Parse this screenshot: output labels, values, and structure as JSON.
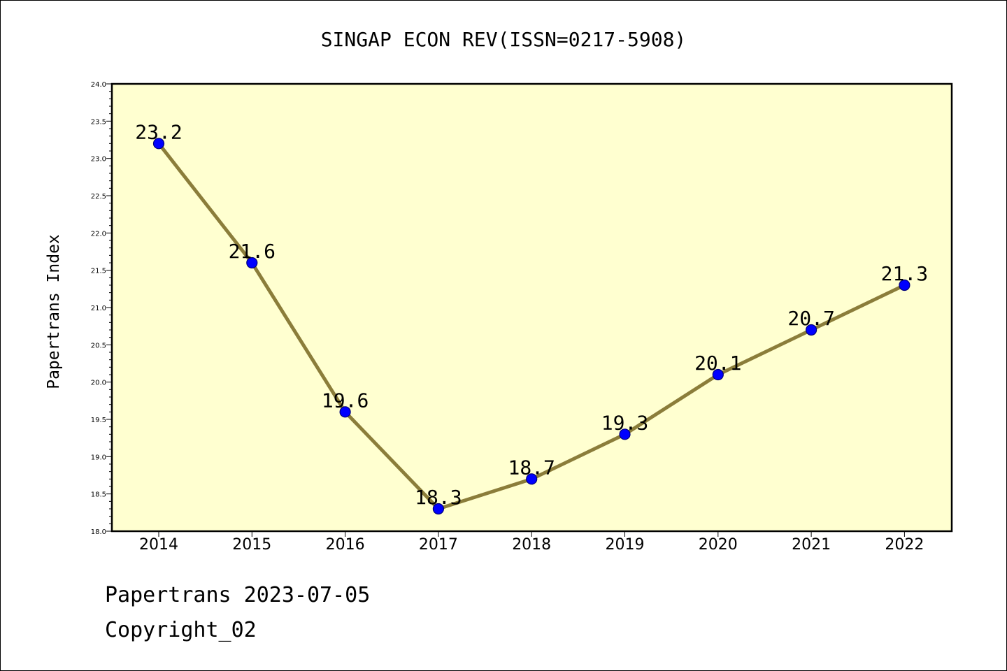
{
  "chart_data": {
    "type": "line",
    "title": "SINGAP ECON REV(ISSN=0217-5908)",
    "xlabel": "",
    "ylabel": "Papertrans Index",
    "x": [
      "2014",
      "2015",
      "2016",
      "2017",
      "2018",
      "2019",
      "2020",
      "2021",
      "2022"
    ],
    "series": [
      {
        "values": [
          23.2,
          21.6,
          19.6,
          18.3,
          18.7,
          19.3,
          20.1,
          20.7,
          21.3
        ],
        "data_labels": [
          "23.2",
          "21.6",
          "19.6",
          "18.3",
          "18.7",
          "19.3",
          "20.1",
          "20.7",
          "21.3"
        ]
      }
    ],
    "ylim": [
      18.0,
      24.0
    ],
    "y_ticks": [
      "18.0",
      "18.5",
      "19.0",
      "19.5",
      "20.0",
      "20.5",
      "21.0",
      "21.5",
      "22.0",
      "22.5",
      "23.0",
      "23.5",
      "24.0"
    ],
    "grid": false,
    "colors": {
      "plot_background": "#ffffd0",
      "line": "#8b7d3a",
      "marker": "#0000ff",
      "marker_edge": "#00007a"
    }
  },
  "footer": {
    "line1": "Papertrans 2023-07-05",
    "line2": "Copyright_02"
  }
}
